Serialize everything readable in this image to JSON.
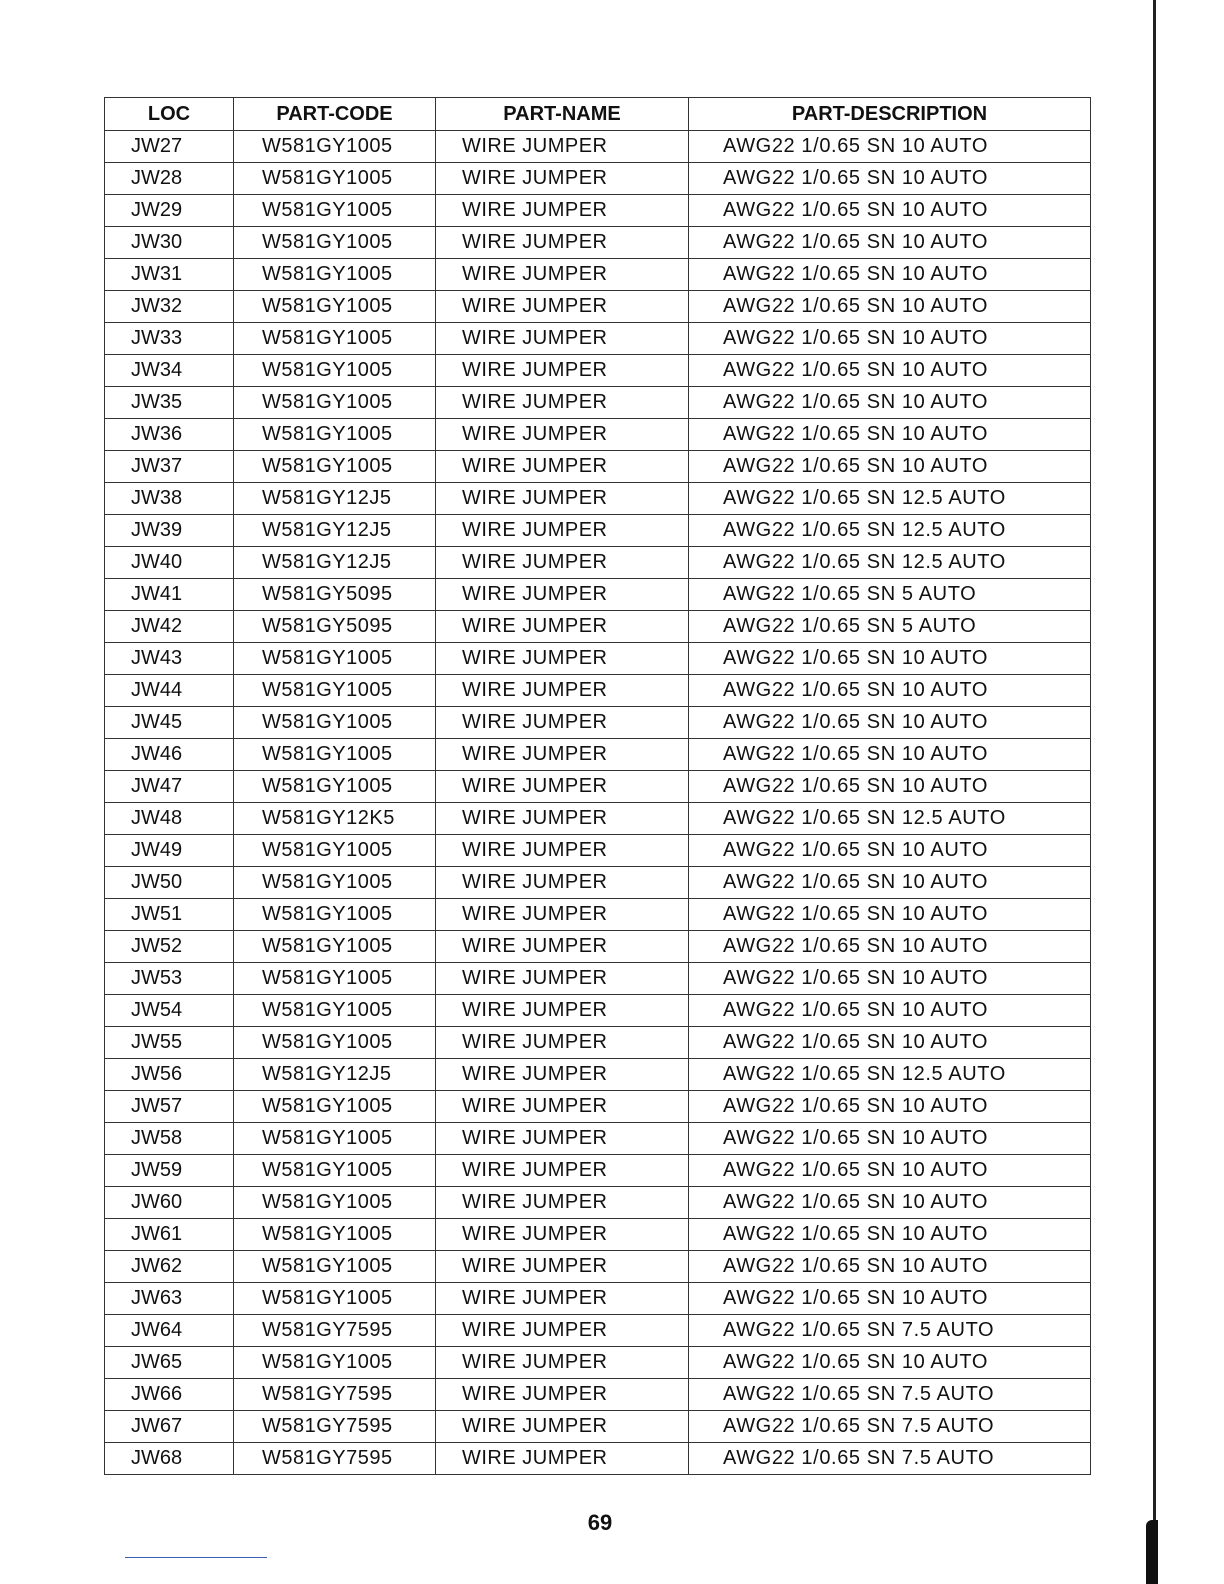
{
  "table": {
    "headers": [
      "LOC",
      "PART-CODE",
      "PART-NAME",
      "PART-DESCRIPTION"
    ],
    "rows": [
      [
        "JW27",
        "W581GY1005",
        "WIRE JUMPER",
        "AWG22 1/0.65 SN 10 AUTO"
      ],
      [
        "JW28",
        "W581GY1005",
        "WIRE JUMPER",
        "AWG22 1/0.65 SN 10 AUTO"
      ],
      [
        "JW29",
        "W581GY1005",
        "WIRE JUMPER",
        "AWG22 1/0.65 SN 10 AUTO"
      ],
      [
        "JW30",
        "W581GY1005",
        "WIRE JUMPER",
        "AWG22 1/0.65 SN 10 AUTO"
      ],
      [
        "JW31",
        "W581GY1005",
        "WIRE JUMPER",
        "AWG22 1/0.65 SN 10 AUTO"
      ],
      [
        "JW32",
        "W581GY1005",
        "WIRE JUMPER",
        "AWG22 1/0.65 SN 10 AUTO"
      ],
      [
        "JW33",
        "W581GY1005",
        "WIRE JUMPER",
        "AWG22 1/0.65 SN 10 AUTO"
      ],
      [
        "JW34",
        "W581GY1005",
        "WIRE JUMPER",
        "AWG22 1/0.65 SN 10 AUTO"
      ],
      [
        "JW35",
        "W581GY1005",
        "WIRE JUMPER",
        "AWG22 1/0.65 SN 10 AUTO"
      ],
      [
        "JW36",
        "W581GY1005",
        "WIRE JUMPER",
        "AWG22 1/0.65 SN 10 AUTO"
      ],
      [
        "JW37",
        "W581GY1005",
        "WIRE JUMPER",
        "AWG22 1/0.65 SN 10 AUTO"
      ],
      [
        "JW38",
        "W581GY12J5",
        "WIRE JUMPER",
        "AWG22 1/0.65 SN 12.5 AUTO"
      ],
      [
        "JW39",
        "W581GY12J5",
        "WIRE JUMPER",
        "AWG22 1/0.65 SN 12.5 AUTO"
      ],
      [
        "JW40",
        "W581GY12J5",
        "WIRE JUMPER",
        "AWG22 1/0.65 SN 12.5 AUTO"
      ],
      [
        "JW41",
        "W581GY5095",
        "WIRE JUMPER",
        "AWG22 1/0.65 SN 5 AUTO"
      ],
      [
        "JW42",
        "W581GY5095",
        "WIRE JUMPER",
        "AWG22 1/0.65 SN 5 AUTO"
      ],
      [
        "JW43",
        "W581GY1005",
        "WIRE JUMPER",
        "AWG22 1/0.65 SN 10 AUTO"
      ],
      [
        "JW44",
        "W581GY1005",
        "WIRE JUMPER",
        "AWG22 1/0.65 SN 10 AUTO"
      ],
      [
        "JW45",
        "W581GY1005",
        "WIRE JUMPER",
        "AWG22 1/0.65 SN 10 AUTO"
      ],
      [
        "JW46",
        "W581GY1005",
        "WIRE JUMPER",
        "AWG22 1/0.65 SN 10 AUTO"
      ],
      [
        "JW47",
        "W581GY1005",
        "WIRE JUMPER",
        "AWG22 1/0.65 SN 10 AUTO"
      ],
      [
        "JW48",
        "W581GY12K5",
        "WIRE JUMPER",
        "AWG22 1/0.65 SN 12.5 AUTO"
      ],
      [
        "JW49",
        "W581GY1005",
        "WIRE JUMPER",
        "AWG22 1/0.65 SN 10 AUTO"
      ],
      [
        "JW50",
        "W581GY1005",
        "WIRE JUMPER",
        "AWG22 1/0.65 SN 10 AUTO"
      ],
      [
        "JW51",
        "W581GY1005",
        "WIRE JUMPER",
        "AWG22 1/0.65 SN 10 AUTO"
      ],
      [
        "JW52",
        "W581GY1005",
        "WIRE JUMPER",
        "AWG22 1/0.65 SN 10 AUTO"
      ],
      [
        "JW53",
        "W581GY1005",
        "WIRE JUMPER",
        "AWG22 1/0.65 SN 10 AUTO"
      ],
      [
        "JW54",
        "W581GY1005",
        "WIRE JUMPER",
        "AWG22 1/0.65 SN 10 AUTO"
      ],
      [
        "JW55",
        "W581GY1005",
        "WIRE JUMPER",
        "AWG22 1/0.65 SN 10 AUTO"
      ],
      [
        "JW56",
        "W581GY12J5",
        "WIRE JUMPER",
        "AWG22 1/0.65 SN 12.5 AUTO"
      ],
      [
        "JW57",
        "W581GY1005",
        "WIRE JUMPER",
        "AWG22 1/0.65 SN 10 AUTO"
      ],
      [
        "JW58",
        "W581GY1005",
        "WIRE JUMPER",
        "AWG22 1/0.65 SN 10 AUTO"
      ],
      [
        "JW59",
        "W581GY1005",
        "WIRE JUMPER",
        "AWG22 1/0.65 SN 10 AUTO"
      ],
      [
        "JW60",
        "W581GY1005",
        "WIRE JUMPER",
        "AWG22 1/0.65 SN 10 AUTO"
      ],
      [
        "JW61",
        "W581GY1005",
        "WIRE JUMPER",
        "AWG22 1/0.65 SN 10 AUTO"
      ],
      [
        "JW62",
        "W581GY1005",
        "WIRE JUMPER",
        "AWG22 1/0.65 SN 10 AUTO"
      ],
      [
        "JW63",
        "W581GY1005",
        "WIRE JUMPER",
        "AWG22 1/0.65 SN 10 AUTO"
      ],
      [
        "JW64",
        "W581GY7595",
        "WIRE JUMPER",
        "AWG22 1/0.65 SN 7.5 AUTO"
      ],
      [
        "JW65",
        "W581GY1005",
        "WIRE JUMPER",
        "AWG22 1/0.65 SN 10 AUTO"
      ],
      [
        "JW66",
        "W581GY7595",
        "WIRE JUMPER",
        "AWG22 1/0.65 SN 7.5 AUTO"
      ],
      [
        "JW67",
        "W581GY7595",
        "WIRE JUMPER",
        "AWG22 1/0.65 SN 7.5 AUTO"
      ],
      [
        "JW68",
        "W581GY7595",
        "WIRE JUMPER",
        "AWG22 1/0.65 SN 7.5 AUTO"
      ]
    ]
  },
  "footer": {
    "page_number": "69"
  }
}
